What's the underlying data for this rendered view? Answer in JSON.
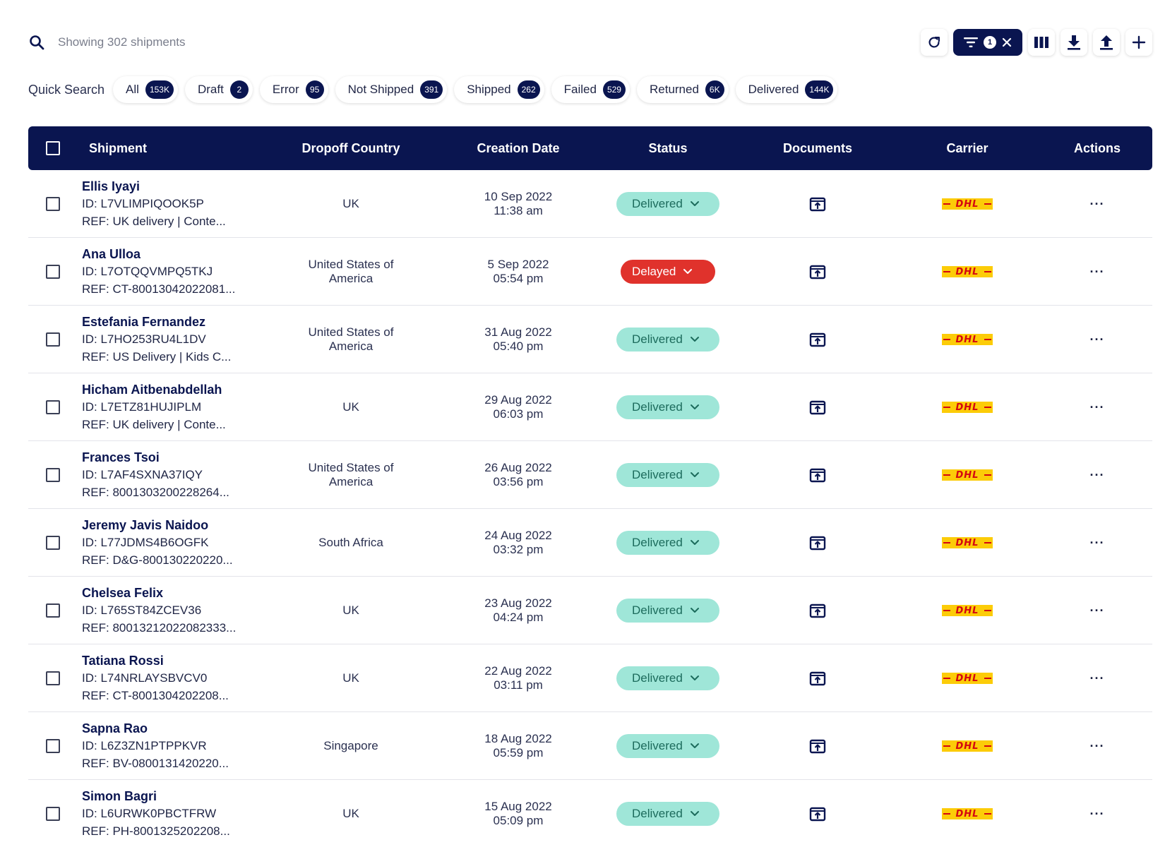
{
  "search": {
    "placeholder": "Showing 302 shipments"
  },
  "toolbar": {
    "filter_count": "1"
  },
  "quick_search": {
    "label": "Quick Search",
    "chips": [
      {
        "label": "All",
        "count": "153K"
      },
      {
        "label": "Draft",
        "count": "2"
      },
      {
        "label": "Error",
        "count": "95"
      },
      {
        "label": "Not Shipped",
        "count": "391"
      },
      {
        "label": "Shipped",
        "count": "262"
      },
      {
        "label": "Failed",
        "count": "529"
      },
      {
        "label": "Returned",
        "count": "6K"
      },
      {
        "label": "Delivered",
        "count": "144K"
      }
    ]
  },
  "table": {
    "headers": {
      "shipment": "Shipment",
      "country": "Dropoff Country",
      "date": "Creation Date",
      "status": "Status",
      "documents": "Documents",
      "carrier": "Carrier",
      "actions": "Actions"
    },
    "carrier_label": "DHL",
    "actions_label": "···",
    "rows": [
      {
        "name": "Ellis Iyayi",
        "id": "ID: L7VLIMPIQOOK5P",
        "ref": "REF: UK delivery | Conte...",
        "country": "UK",
        "date": "10 Sep 2022",
        "time": "11:38 am",
        "status": "Delivered"
      },
      {
        "name": "Ana Ulloa",
        "id": "ID: L7OTQQVMPQ5TKJ",
        "ref": "REF: CT-80013042022081...",
        "country": "United States of America",
        "date": "5 Sep 2022",
        "time": "05:54 pm",
        "status": "Delayed"
      },
      {
        "name": "Estefania Fernandez",
        "id": "ID: L7HO253RU4L1DV",
        "ref": "REF: US Delivery | Kids C...",
        "country": "United States of America",
        "date": "31 Aug 2022",
        "time": "05:40 pm",
        "status": "Delivered"
      },
      {
        "name": "Hicham Aitbenabdellah",
        "id": "ID: L7ETZ81HUJIPLM",
        "ref": "REF: UK delivery | Conte...",
        "country": "UK",
        "date": "29 Aug 2022",
        "time": "06:03 pm",
        "status": "Delivered"
      },
      {
        "name": "Frances Tsoi",
        "id": "ID: L7AF4SXNA37IQY",
        "ref": "REF: 8001303200228264...",
        "country": "United States of America",
        "date": "26 Aug 2022",
        "time": "03:56 pm",
        "status": "Delivered"
      },
      {
        "name": "Jeremy Javis Naidoo",
        "id": "ID: L77JDMS4B6OGFK",
        "ref": "REF: D&G-800130220220...",
        "country": "South Africa",
        "date": "24 Aug 2022",
        "time": "03:32 pm",
        "status": "Delivered"
      },
      {
        "name": "Chelsea Felix",
        "id": "ID: L765ST84ZCEV36",
        "ref": "REF: 80013212022082333...",
        "country": "UK",
        "date": "23 Aug 2022",
        "time": "04:24 pm",
        "status": "Delivered"
      },
      {
        "name": "Tatiana Rossi",
        "id": "ID: L74NRLAYSBVCV0",
        "ref": "REF: CT-8001304202208...",
        "country": "UK",
        "date": "22 Aug 2022",
        "time": "03:11 pm",
        "status": "Delivered"
      },
      {
        "name": "Sapna Rao",
        "id": "ID: L6Z3ZN1PTPPKVR",
        "ref": "REF: BV-0800131420220...",
        "country": "Singapore",
        "date": "18 Aug 2022",
        "time": "05:59 pm",
        "status": "Delivered"
      },
      {
        "name": "Simon Bagri",
        "id": "ID: L6URWK0PBCTFRW",
        "ref": "REF: PH-8001325202208...",
        "country": "UK",
        "date": "15 Aug 2022",
        "time": "05:09 pm",
        "status": "Delivered"
      }
    ]
  },
  "colors": {
    "navy": "#0a1550",
    "delivered_bg": "#9fe6d8",
    "delayed_bg": "#e0322c",
    "dhl_yellow": "#fccc08",
    "dhl_red": "#d40511"
  },
  "icons": [
    "search-icon",
    "refresh-icon",
    "filter-icon",
    "close-icon",
    "columns-icon",
    "download-icon",
    "upload-icon",
    "plus-icon",
    "chevron-down-icon",
    "document-icon"
  ]
}
